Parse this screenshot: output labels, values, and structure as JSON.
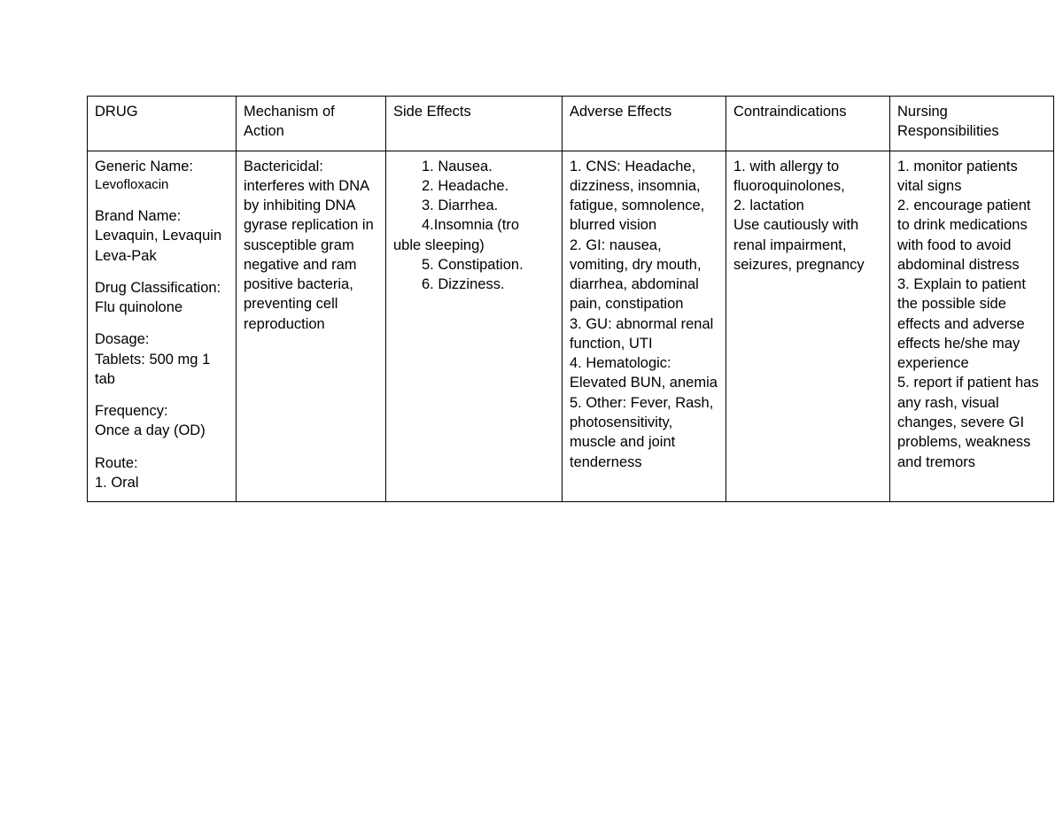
{
  "headers": {
    "drug": "DRUG",
    "moa": "Mechanism of Action",
    "se": "Side Effects",
    "ae": "Adverse Effects",
    "ci": "Contraindications",
    "nr": "Nursing Responsibilities"
  },
  "drug": {
    "generic_label": "Generic Name:",
    "generic_value": "Levofloxacin",
    "brand_label": "Brand Name:",
    "brand_value": "Levaquin, Levaquin Leva-Pak",
    "class_label": "Drug Classification:",
    "class_value": "Flu quinolone",
    "dosage_label": "Dosage:",
    "dosage_value": "Tablets: 500 mg 1 tab",
    "freq_label": "Frequency:",
    "freq_value": "Once a day (OD)",
    "route_label": "Route:",
    "route_value": "1. Oral"
  },
  "moa": "Bactericidal: interferes with DNA by inhibiting DNA gyrase replication in susceptible gram negative and ram positive bacteria, preventing cell reproduction",
  "se": {
    "i1": "1. Nausea.",
    "i2": "2. Headache.",
    "i3": "3. Diarrhea.",
    "i4a": "4.Insomnia (tro",
    "i4b": "uble sleeping)",
    "i5": "5. Constipation.",
    "i6": "6. Dizziness."
  },
  "ae": "1. CNS: Headache, dizziness, insomnia, fatigue, somnolence, blurred vision\n2. GI: nausea, vomiting, dry mouth, diarrhea, abdominal pain, constipation\n3. GU: abnormal renal function, UTI\n4. Hematologic: Elevated BUN, anemia\n5. Other: Fever, Rash, photosensitivity, muscle and joint tenderness",
  "ci": "1. with allergy to fluoroquinolones,\n2. lactation\nUse cautiously with renal impairment, seizures, pregnancy",
  "nr": "1. monitor patients vital signs\n2. encourage patient to drink medications with food to avoid abdominal distress\n3. Explain to patient the possible side effects and adverse effects he/she may experience\n5. report if patient has any rash, visual changes, severe GI problems, weakness and tremors",
  "style": {
    "border_color": "#000000",
    "background": "#ffffff",
    "text_color": "#000000",
    "font_family": "Arial",
    "heading_fontsize": 16.5,
    "body_fontsize": 16.5,
    "sub_fontsize": 15
  }
}
